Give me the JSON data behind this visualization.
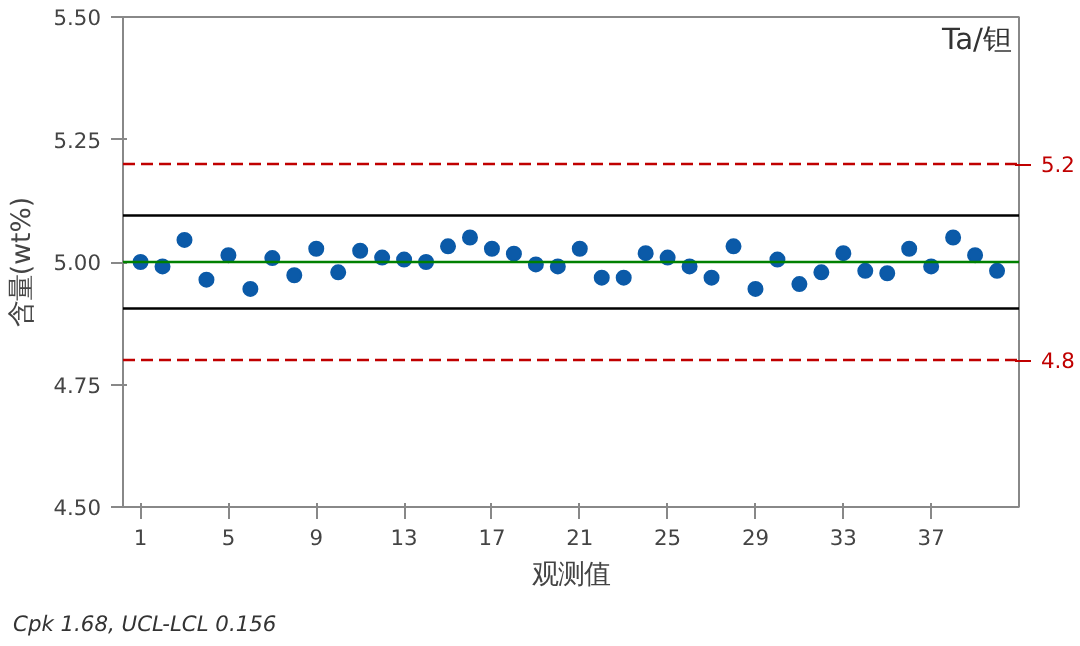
{
  "chart_data": {
    "type": "scatter",
    "title": "Ta/钽",
    "xlabel": "观测值",
    "ylabel": "含量(wt%)",
    "x": [
      1,
      2,
      3,
      4,
      5,
      6,
      7,
      8,
      9,
      10,
      11,
      12,
      13,
      14,
      15,
      16,
      17,
      18,
      19,
      20,
      21,
      22,
      23,
      24,
      25,
      26,
      27,
      28,
      29,
      30,
      31,
      32,
      33,
      34,
      35,
      36,
      37,
      38,
      39,
      40
    ],
    "series": [
      {
        "color": "#0b5aa8",
        "values": [
          5.0,
          4.991,
          5.045,
          4.964,
          5.014,
          4.945,
          5.008,
          4.973,
          5.027,
          4.979,
          5.023,
          5.009,
          5.005,
          5.0,
          5.032,
          5.05,
          5.027,
          5.017,
          4.995,
          4.991,
          5.027,
          4.968,
          4.968,
          5.018,
          5.009,
          4.991,
          4.968,
          5.032,
          4.945,
          5.005,
          4.955,
          4.979,
          5.018,
          4.982,
          4.977,
          5.027,
          4.991,
          5.05,
          5.014,
          4.982
        ]
      }
    ],
    "marker": "circle",
    "xlim": [
      0.2,
      41
    ],
    "xticks": [
      1,
      5,
      9,
      13,
      17,
      21,
      25,
      29,
      33,
      37
    ],
    "ylim": [
      4.5,
      5.5
    ],
    "yticks": [
      {
        "value": 4.5,
        "label": "4.50"
      },
      {
        "value": 4.75,
        "label": "4.75"
      },
      {
        "value": 5.0,
        "label": "5.00"
      },
      {
        "value": 5.25,
        "label": "5.25"
      },
      {
        "value": 5.5,
        "label": "5.50"
      }
    ],
    "ref_lines": [
      {
        "axis": "y",
        "value": 5.2,
        "label": "5.2",
        "color": "#c00000",
        "line_style": "dashed"
      },
      {
        "axis": "y",
        "value": 4.8,
        "label": "4.8",
        "color": "#c00000",
        "line_style": "dashed"
      },
      {
        "axis": "y",
        "value": 5.095,
        "color": "#000000",
        "line_style": "solid"
      },
      {
        "axis": "y",
        "value": 4.905,
        "color": "#000000",
        "line_style": "solid"
      },
      {
        "axis": "y",
        "value": 5.0,
        "color": "#008000",
        "line_style": "solid"
      }
    ],
    "annotations": [
      "Cpk 1.68,  UCL-LCL 0.156"
    ],
    "grid": false
  }
}
